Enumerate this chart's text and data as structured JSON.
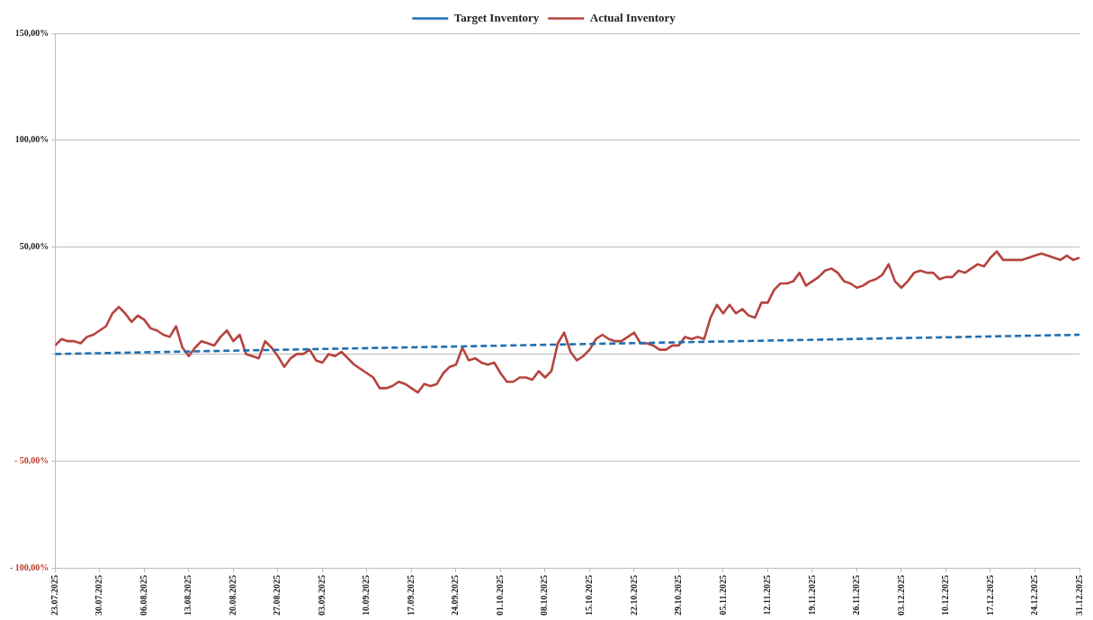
{
  "chart_data": {
    "type": "line",
    "x": [
      "2025-07-23",
      "2025-07-24",
      "2025-07-25",
      "2025-07-26",
      "2025-07-27",
      "2025-07-28",
      "2025-07-29",
      "2025-07-30",
      "2025-07-31",
      "2025-08-01",
      "2025-08-02",
      "2025-08-03",
      "2025-08-04",
      "2025-08-05",
      "2025-08-06",
      "2025-08-07",
      "2025-08-08",
      "2025-08-09",
      "2025-08-10",
      "2025-08-11",
      "2025-08-12",
      "2025-08-13",
      "2025-08-14",
      "2025-08-15",
      "2025-08-16",
      "2025-08-17",
      "2025-08-18",
      "2025-08-19",
      "2025-08-20",
      "2025-08-21",
      "2025-08-22",
      "2025-08-23",
      "2025-08-24",
      "2025-08-25",
      "2025-08-26",
      "2025-08-27",
      "2025-08-28",
      "2025-08-29",
      "2025-08-30",
      "2025-08-31",
      "2025-09-01",
      "2025-09-02",
      "2025-09-03",
      "2025-09-04",
      "2025-09-05",
      "2025-09-06",
      "2025-09-07",
      "2025-09-08",
      "2025-09-09",
      "2025-09-10",
      "2025-09-11",
      "2025-09-12",
      "2025-09-13",
      "2025-09-14",
      "2025-09-15",
      "2025-09-16",
      "2025-09-17",
      "2025-09-18",
      "2025-09-19",
      "2025-09-20",
      "2025-09-21",
      "2025-09-22",
      "2025-09-23",
      "2025-09-24",
      "2025-09-25",
      "2025-09-26",
      "2025-09-27",
      "2025-09-28",
      "2025-09-29",
      "2025-09-30",
      "2025-10-01",
      "2025-10-02",
      "2025-10-03",
      "2025-10-04",
      "2025-10-05",
      "2025-10-06",
      "2025-10-07",
      "2025-10-08",
      "2025-10-09",
      "2025-10-10",
      "2025-10-11",
      "2025-10-12",
      "2025-10-13",
      "2025-10-14",
      "2025-10-15",
      "2025-10-16",
      "2025-10-17",
      "2025-10-18",
      "2025-10-19",
      "2025-10-20",
      "2025-10-21",
      "2025-10-22",
      "2025-10-23",
      "2025-10-24",
      "2025-10-25",
      "2025-10-26",
      "2025-10-27",
      "2025-10-28",
      "2025-10-29",
      "2025-10-30",
      "2025-10-31",
      "2025-11-01",
      "2025-11-02",
      "2025-11-03",
      "2025-11-04",
      "2025-11-05",
      "2025-11-06",
      "2025-11-07",
      "2025-11-08",
      "2025-11-09",
      "2025-11-10",
      "2025-11-11",
      "2025-11-12",
      "2025-11-13",
      "2025-11-14",
      "2025-11-15",
      "2025-11-16",
      "2025-11-17",
      "2025-11-18",
      "2025-11-19",
      "2025-11-20",
      "2025-11-21",
      "2025-11-22",
      "2025-11-23",
      "2025-11-24",
      "2025-11-25",
      "2025-11-26",
      "2025-11-27",
      "2025-11-28",
      "2025-11-29",
      "2025-11-30",
      "2025-12-01",
      "2025-12-02",
      "2025-12-03",
      "2025-12-04",
      "2025-12-05",
      "2025-12-06",
      "2025-12-07",
      "2025-12-08",
      "2025-12-09",
      "2025-12-10",
      "2025-12-11",
      "2025-12-12",
      "2025-12-13",
      "2025-12-14",
      "2025-12-15",
      "2025-12-16",
      "2025-12-17",
      "2025-12-18",
      "2025-12-19",
      "2025-12-20",
      "2025-12-21",
      "2025-12-22",
      "2025-12-23",
      "2025-12-24",
      "2025-12-25",
      "2025-12-26",
      "2025-12-27",
      "2025-12-28",
      "2025-12-29",
      "2025-12-30",
      "2025-12-31"
    ],
    "series": [
      {
        "name": "Target Inventory",
        "color": "#1f6fb2",
        "line_style": "dashed",
        "x": [
          "2025-07-23",
          "2025-12-31"
        ],
        "values": [
          0,
          9
        ]
      },
      {
        "name": "Actual Inventory",
        "color": "#b5443f",
        "line_style": "solid",
        "values": [
          4,
          7,
          6,
          6,
          5,
          8,
          9,
          11,
          13,
          19,
          22,
          19,
          15,
          18,
          16,
          12,
          11,
          9,
          8,
          13,
          3,
          -1,
          3,
          6,
          5,
          4,
          8,
          11,
          6,
          9,
          0,
          -1,
          -2,
          6,
          3,
          -1,
          -6,
          -2,
          0,
          0,
          2,
          -3,
          -4,
          0,
          -1,
          1,
          -2,
          -5,
          -7,
          -9,
          -11,
          -16,
          -16,
          -15,
          -13,
          -14,
          -16,
          -18,
          -14,
          -15,
          -14,
          -9,
          -6,
          -5,
          3,
          -3,
          -2,
          -4,
          -5,
          -4,
          -9,
          -13,
          -13,
          -11,
          -11,
          -12,
          -8,
          -11,
          -8,
          5,
          10,
          1,
          -3,
          -1,
          2,
          7,
          9,
          7,
          6,
          6,
          8,
          10,
          5,
          5,
          4,
          2,
          2,
          4,
          4,
          8,
          7,
          8,
          7,
          17,
          23,
          19,
          23,
          19,
          21,
          18,
          17,
          24,
          24,
          30,
          33,
          33,
          34,
          38,
          32,
          34,
          36,
          39,
          40,
          38,
          34,
          33,
          31,
          32,
          34,
          35,
          37,
          42,
          34,
          31,
          34,
          38,
          39,
          38,
          38,
          35,
          36,
          36,
          39,
          38,
          40,
          42,
          41,
          45,
          48,
          44,
          44,
          44,
          44,
          45,
          46,
          47,
          46,
          45,
          44,
          46,
          44,
          45
        ]
      }
    ],
    "xlim": [
      "2025-07-23",
      "2025-12-31"
    ],
    "xticks": [
      {
        "value": "2025-07-23",
        "label": "23.07.2025"
      },
      {
        "value": "2025-07-30",
        "label": "30.07.2025"
      },
      {
        "value": "2025-08-06",
        "label": "06.08.2025"
      },
      {
        "value": "2025-08-13",
        "label": "13.08.2025"
      },
      {
        "value": "2025-08-20",
        "label": "20.08.2025"
      },
      {
        "value": "2025-08-27",
        "label": "27.08.2025"
      },
      {
        "value": "2025-09-03",
        "label": "03.09.2025"
      },
      {
        "value": "2025-09-10",
        "label": "10.09.2025"
      },
      {
        "value": "2025-09-17",
        "label": "17.09.2025"
      },
      {
        "value": "2025-09-24",
        "label": "24.09.2025"
      },
      {
        "value": "2025-10-01",
        "label": "01.10.2025"
      },
      {
        "value": "2025-10-08",
        "label": "08.10.2025"
      },
      {
        "value": "2025-10-15",
        "label": "15.10.2025"
      },
      {
        "value": "2025-10-22",
        "label": "22.10.2025"
      },
      {
        "value": "2025-10-29",
        "label": "29.10.2025"
      },
      {
        "value": "2025-11-05",
        "label": "05.11.2025"
      },
      {
        "value": "2025-11-12",
        "label": "12.11.2025"
      },
      {
        "value": "2025-11-19",
        "label": "19.11.2025"
      },
      {
        "value": "2025-11-26",
        "label": "26.11.2025"
      },
      {
        "value": "2025-12-03",
        "label": "03.12.2025"
      },
      {
        "value": "2025-12-10",
        "label": "10.12.2025"
      },
      {
        "value": "2025-12-17",
        "label": "17.12.2025"
      },
      {
        "value": "2025-12-24",
        "label": "24.12.2025"
      },
      {
        "value": "2025-12-31",
        "label": "31.12.2025"
      }
    ],
    "ylim": [
      -100,
      150
    ],
    "yticks": [
      {
        "value": -100,
        "label": "- 100,00%"
      },
      {
        "value": -50,
        "label": "- 50,00%"
      },
      {
        "value": 0,
        "label": null
      },
      {
        "value": 50,
        "label": "50,00%"
      },
      {
        "value": 100,
        "label": "100,00%"
      },
      {
        "value": 150,
        "label": "150,00%"
      }
    ],
    "grid": "y",
    "legend": "top",
    "marker": "none"
  }
}
